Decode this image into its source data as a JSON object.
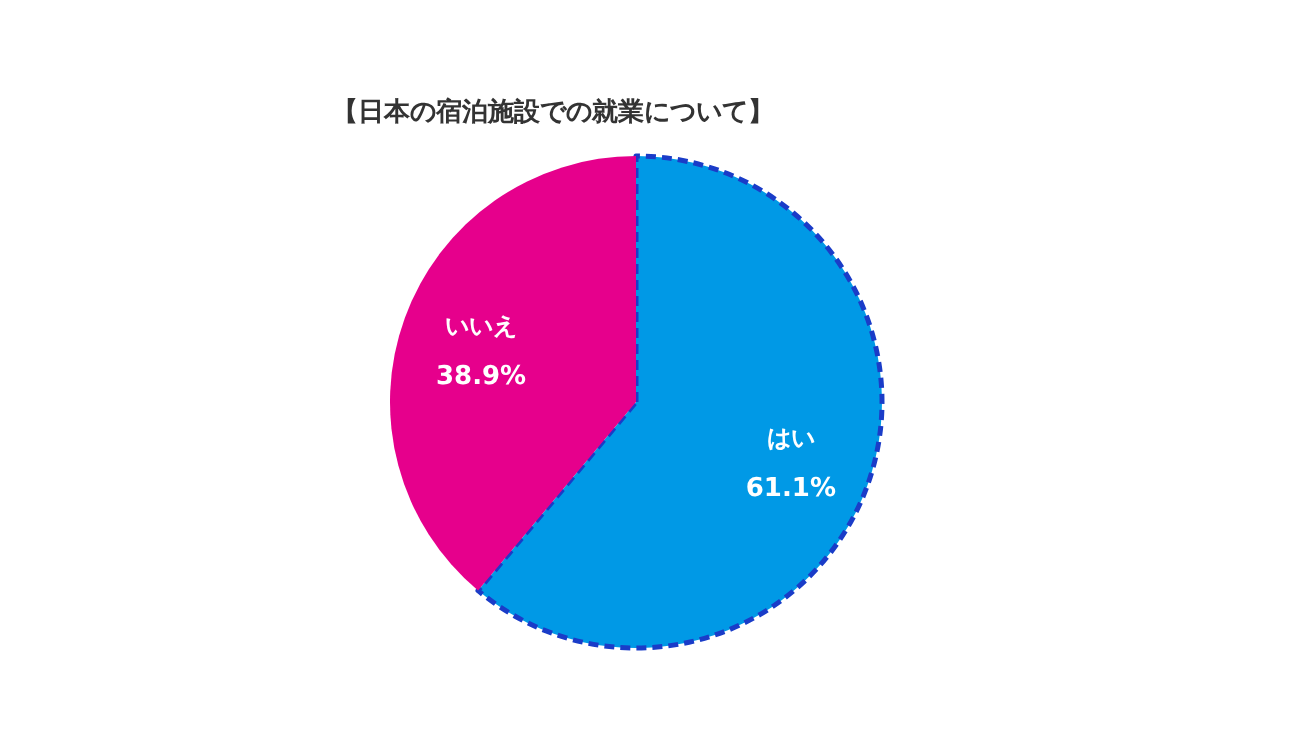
{
  "chart_data": {
    "type": "pie",
    "title": "【日本の宿泊施設での就業について】",
    "categories": [
      "はい",
      "いいえ"
    ],
    "values": [
      61.1,
      38.9
    ],
    "colors": [
      "#0099e6",
      "#e6008c"
    ],
    "value_labels": [
      "61.1%",
      "38.9%"
    ],
    "line_style": "dashed"
  }
}
